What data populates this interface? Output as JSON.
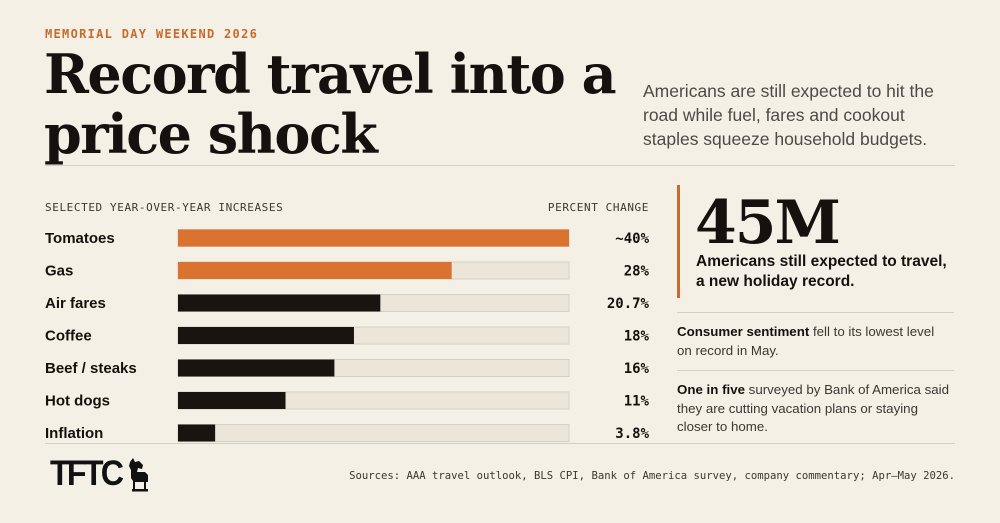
{
  "header": {
    "kicker": "MEMORIAL DAY WEEKEND 2026",
    "title": "Record travel into a price shock",
    "subtitle": "Americans are still expected to hit the road while fuel, fares and cookout staples squeeze household budgets."
  },
  "chart_data": {
    "type": "bar",
    "orientation": "horizontal",
    "header_left": "SELECTED YEAR-OVER-YEAR INCREASES",
    "header_right": "PERCENT CHANGE",
    "categories": [
      "Tomatoes",
      "Gas",
      "Air fares",
      "Coffee",
      "Beef / steaks",
      "Hot dogs",
      "Inflation"
    ],
    "values": [
      40,
      28,
      20.7,
      18,
      16,
      11,
      3.8
    ],
    "value_labels": [
      "~40%",
      "28%",
      "20.7%",
      "18%",
      "16%",
      "11%",
      "3.8%"
    ],
    "xlim": [
      0,
      40
    ],
    "colors": {
      "highlight": "#d9732f",
      "bar": "#1a1411",
      "track": "#ece5d9",
      "track_border": "#d6cfc3"
    },
    "highlighted": [
      "Tomatoes",
      "Gas"
    ],
    "grid": false
  },
  "sidebar": {
    "big_stat": "45M",
    "big_stat_desc": "Americans still expected to travel, a new holiday record.",
    "notes": [
      {
        "bold": "Consumer sentiment",
        "text": " fell to its lowest level on record in May."
      },
      {
        "bold": "One in five",
        "text": " surveyed by Bank of America said they are cutting vacation plans or staying closer to home."
      }
    ],
    "accent_color": "#c76b2c"
  },
  "footer": {
    "logo": "TFTC",
    "sources": "Sources: AAA travel outlook, BLS CPI, Bank of America survey, company commentary; Apr–May 2026."
  }
}
